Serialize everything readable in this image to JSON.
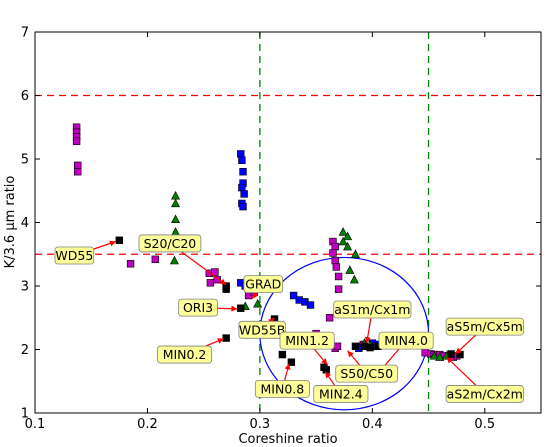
{
  "chart_data": {
    "type": "scatter",
    "xlabel": "Coreshine ratio",
    "ylabel": "K/3.6 μm ratio",
    "xlim": [
      0.1,
      0.55
    ],
    "ylim": [
      1,
      7
    ],
    "xticks": [
      "0.1",
      "0.2",
      "0.3",
      "0.4",
      "0.5"
    ],
    "xtick_values": [
      0.1,
      0.2,
      0.3,
      0.4,
      0.5
    ],
    "yticks": [
      "1",
      "2",
      "3",
      "4",
      "5",
      "6",
      "7"
    ],
    "ytick_values": [
      1,
      2,
      3,
      4,
      5,
      6,
      7
    ],
    "hlines": [
      {
        "y": 6.0,
        "color": "#ff0000",
        "style": "dashed"
      },
      {
        "y": 3.5,
        "color": "#ff0000",
        "style": "dashed"
      }
    ],
    "vlines": [
      {
        "x": 0.3,
        "color": "#008000",
        "style": "dashed"
      },
      {
        "x": 0.45,
        "color": "#008000",
        "style": "dashed"
      }
    ],
    "ellipse": {
      "cx": 0.375,
      "cy": 2.25,
      "rx": 0.075,
      "ry": 1.2,
      "color": "#0000ff"
    },
    "series": [
      {
        "marker": "square",
        "color": "#c000c0",
        "points": [
          [
            0.137,
            5.5
          ],
          [
            0.137,
            5.42
          ],
          [
            0.137,
            5.35
          ],
          [
            0.137,
            5.28
          ],
          [
            0.138,
            4.9
          ],
          [
            0.138,
            4.8
          ],
          [
            0.185,
            3.35
          ],
          [
            0.207,
            3.42
          ],
          [
            0.255,
            3.2
          ],
          [
            0.26,
            3.22
          ],
          [
            0.262,
            3.1
          ],
          [
            0.256,
            3.05
          ],
          [
            0.29,
            2.85
          ],
          [
            0.295,
            2.9
          ],
          [
            0.35,
            2.25
          ],
          [
            0.352,
            2.2
          ],
          [
            0.365,
            3.7
          ],
          [
            0.367,
            3.62
          ],
          [
            0.365,
            3.52
          ],
          [
            0.367,
            3.4
          ],
          [
            0.368,
            3.3
          ],
          [
            0.37,
            3.15
          ],
          [
            0.37,
            2.95
          ],
          [
            0.362,
            2.5
          ],
          [
            0.367,
            2.02
          ],
          [
            0.369,
            2.05
          ],
          [
            0.375,
            1.6
          ],
          [
            0.39,
            2.05
          ],
          [
            0.392,
            2.08
          ],
          [
            0.447,
            1.95
          ],
          [
            0.452,
            1.93
          ],
          [
            0.455,
            1.92
          ],
          [
            0.46,
            1.92
          ],
          [
            0.463,
            1.9
          ],
          [
            0.468,
            1.9
          ],
          [
            0.472,
            1.88
          ],
          [
            0.475,
            1.9
          ]
        ]
      },
      {
        "marker": "square",
        "color": "#0000ff",
        "points": [
          [
            0.283,
            5.08
          ],
          [
            0.284,
            4.98
          ],
          [
            0.285,
            4.8
          ],
          [
            0.285,
            4.62
          ],
          [
            0.284,
            4.55
          ],
          [
            0.286,
            4.45
          ],
          [
            0.284,
            4.3
          ],
          [
            0.285,
            4.25
          ],
          [
            0.283,
            3.05
          ],
          [
            0.287,
            3.0
          ],
          [
            0.29,
            2.98
          ],
          [
            0.33,
            2.85
          ],
          [
            0.335,
            2.78
          ],
          [
            0.34,
            2.75
          ],
          [
            0.345,
            2.7
          ],
          [
            0.4,
            2.1
          ],
          [
            0.403,
            2.05
          ],
          [
            0.406,
            2.08
          ],
          [
            0.41,
            2.06
          ],
          [
            0.388,
            2.02
          ]
        ]
      },
      {
        "marker": "triangle",
        "color": "#008000",
        "points": [
          [
            0.225,
            4.42
          ],
          [
            0.225,
            4.3
          ],
          [
            0.225,
            4.05
          ],
          [
            0.225,
            3.85
          ],
          [
            0.224,
            3.4
          ],
          [
            0.293,
            2.95
          ],
          [
            0.298,
            2.72
          ],
          [
            0.287,
            2.68
          ],
          [
            0.374,
            3.85
          ],
          [
            0.378,
            3.78
          ],
          [
            0.374,
            3.7
          ],
          [
            0.378,
            3.62
          ],
          [
            0.385,
            3.5
          ],
          [
            0.38,
            3.25
          ],
          [
            0.384,
            3.1
          ],
          [
            0.393,
            2.1
          ],
          [
            0.398,
            2.07
          ],
          [
            0.455,
            1.9
          ],
          [
            0.46,
            1.88
          ],
          [
            0.466,
            1.9
          ]
        ]
      },
      {
        "marker": "square",
        "color": "#000000",
        "points": [
          [
            0.175,
            3.72
          ],
          [
            0.27,
            3.0
          ],
          [
            0.27,
            2.95
          ],
          [
            0.283,
            2.65
          ],
          [
            0.313,
            2.48
          ],
          [
            0.27,
            2.18
          ],
          [
            0.32,
            1.92
          ],
          [
            0.328,
            1.8
          ],
          [
            0.357,
            1.72
          ],
          [
            0.359,
            1.68
          ],
          [
            0.385,
            2.05
          ],
          [
            0.393,
            2.05
          ],
          [
            0.398,
            2.03
          ],
          [
            0.405,
            2.05
          ],
          [
            0.47,
            1.93
          ],
          [
            0.478,
            1.92
          ]
        ]
      }
    ],
    "annotations": [
      {
        "text": "WD55",
        "box_x": 0.135,
        "box_y": 3.48,
        "arrow_to": [
          0.172,
          3.7
        ]
      },
      {
        "text": "S20/C20",
        "box_x": 0.22,
        "box_y": 3.67,
        "arrow_to": [
          0.27,
          3.02
        ]
      },
      {
        "text": "GRAD",
        "box_x": 0.303,
        "box_y": 3.03,
        "arrow_to": [
          0.293,
          2.8
        ]
      },
      {
        "text": "ORI3",
        "box_x": 0.245,
        "box_y": 2.66,
        "arrow_to": [
          0.28,
          2.64
        ]
      },
      {
        "text": "aS1m/Cx1m",
        "box_x": 0.4,
        "box_y": 2.63,
        "arrow_to": [
          0.395,
          2.1
        ]
      },
      {
        "text": "aS5m/Cx5m",
        "box_x": 0.5,
        "box_y": 2.36,
        "arrow_to": [
          0.474,
          1.93
        ]
      },
      {
        "text": "WD55B",
        "box_x": 0.302,
        "box_y": 2.31,
        "arrow_to": [
          0.313,
          2.5
        ]
      },
      {
        "text": "MIN4.0",
        "box_x": 0.43,
        "box_y": 2.14,
        "arrow_to": [
          0.405,
          1.62
        ]
      },
      {
        "text": "MIN1.2",
        "box_x": 0.342,
        "box_y": 2.14,
        "arrow_to": [
          0.36,
          1.76
        ]
      },
      {
        "text": "MIN0.2",
        "box_x": 0.233,
        "box_y": 1.92,
        "arrow_to": [
          0.268,
          2.17
        ]
      },
      {
        "text": "S50/C50",
        "box_x": 0.395,
        "box_y": 1.62,
        "arrow_to": [
          0.378,
          1.98
        ]
      },
      {
        "text": "MIN0.8",
        "box_x": 0.32,
        "box_y": 1.38,
        "arrow_to": [
          0.326,
          1.78
        ]
      },
      {
        "text": "MIN2.4",
        "box_x": 0.372,
        "box_y": 1.3,
        "arrow_to": [
          0.358,
          1.65
        ]
      },
      {
        "text": "aS2m/Cx2m",
        "box_x": 0.5,
        "box_y": 1.3,
        "arrow_to": [
          0.466,
          1.88
        ]
      }
    ]
  }
}
